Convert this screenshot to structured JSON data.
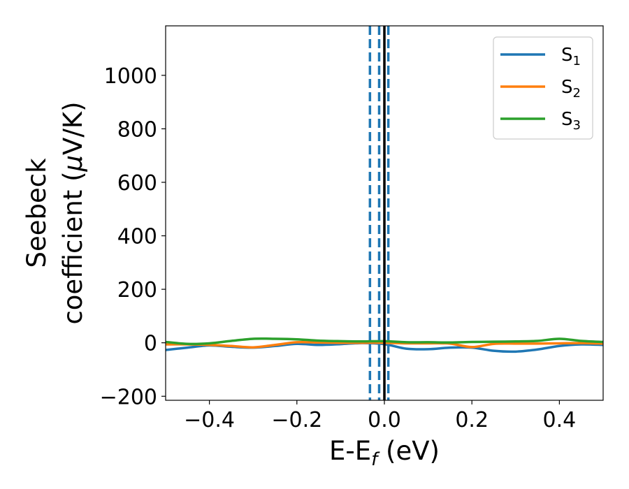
{
  "chart_data": {
    "type": "line",
    "xlabel_main": "E-E",
    "xlabel_sub": "f",
    "xlabel_unit": " (eV)",
    "ylabel_line1": "Seebeck",
    "ylabel_line2a": "coefficient  (",
    "ylabel_mu": "μ",
    "ylabel_line2b": "V/K)",
    "xlim": [
      -0.5,
      0.5
    ],
    "ylim": [
      -215,
      1185
    ],
    "x_ticks": [
      -0.4,
      -0.2,
      0.0,
      0.2,
      0.4
    ],
    "x_tick_labels": [
      "−0.4",
      "−0.2",
      "0.0",
      "0.2",
      "0.4"
    ],
    "y_ticks": [
      -200,
      0,
      200,
      400,
      600,
      800,
      1000
    ],
    "y_tick_labels": [
      "−200",
      "0",
      "200",
      "400",
      "600",
      "800",
      "1000"
    ],
    "legend_position": "top-right",
    "vlines": [
      {
        "x": -0.033,
        "style": "dashed",
        "color": "#1f77b4"
      },
      {
        "x": -0.012,
        "style": "dashed",
        "color": "#1f77b4"
      },
      {
        "x": 0.009,
        "style": "dashed",
        "color": "#1f77b4"
      },
      {
        "x": 0.0,
        "style": "solid",
        "color": "#000000"
      }
    ],
    "x": [
      -0.5,
      -0.45,
      -0.4,
      -0.35,
      -0.3,
      -0.25,
      -0.2,
      -0.15,
      -0.1,
      -0.05,
      0.0,
      0.05,
      0.1,
      0.15,
      0.2,
      0.25,
      0.3,
      0.35,
      0.4,
      0.45,
      0.5
    ],
    "series": [
      {
        "name": "S",
        "sub": "1",
        "color": "#1f77b4",
        "values": [
          -27,
          -18,
          -10,
          -15,
          -18,
          -12,
          -4,
          -8,
          -5,
          -1,
          -5,
          -22,
          -24,
          -18,
          -18,
          -30,
          -33,
          -25,
          -12,
          -6,
          -8
        ]
      },
      {
        "name": "S",
        "sub": "2",
        "color": "#ff7f0e",
        "values": [
          -6,
          -6,
          -8,
          -12,
          -17,
          -8,
          2,
          1,
          0,
          0,
          0,
          -2,
          -2,
          -3,
          -16,
          -4,
          -3,
          -3,
          -2,
          -1,
          -3
        ]
      },
      {
        "name": "S",
        "sub": "3",
        "color": "#2ca02c",
        "values": [
          3,
          -4,
          -2,
          7,
          15,
          15,
          13,
          8,
          6,
          5,
          6,
          2,
          2,
          1,
          3,
          4,
          5,
          7,
          15,
          7,
          3
        ]
      }
    ]
  }
}
